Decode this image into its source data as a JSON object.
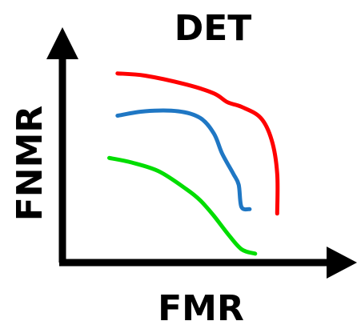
{
  "chart_data": {
    "type": "line",
    "title": "DET",
    "xlabel": "FMR",
    "ylabel": "FNMR",
    "grid": false,
    "ticks": false,
    "xlim": [
      0,
      100
    ],
    "ylim": [
      0,
      100
    ],
    "series": [
      {
        "color": "#ff0000",
        "x": [
          20,
          30,
          45,
          55,
          60,
          65,
          72,
          76,
          78,
          78
        ],
        "y": [
          85,
          84,
          80,
          76,
          72,
          70,
          65,
          55,
          40,
          22
        ]
      },
      {
        "color": "#1f77c4",
        "x": [
          20,
          30,
          42,
          50,
          55,
          58,
          62,
          64,
          65,
          68
        ],
        "y": [
          66,
          68,
          68,
          65,
          58,
          49,
          40,
          35,
          25,
          24
        ]
      },
      {
        "color": "#00dd00",
        "x": [
          17,
          25,
          35,
          45,
          50,
          55,
          60,
          65,
          70
        ],
        "y": [
          47,
          45,
          41,
          33,
          28,
          21,
          13,
          6,
          4
        ]
      }
    ]
  }
}
